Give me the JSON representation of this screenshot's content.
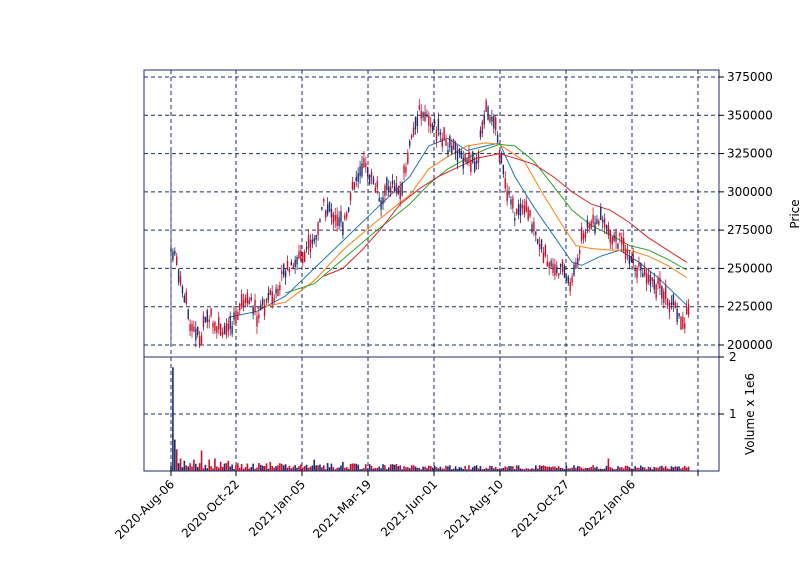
{
  "chart_data": {
    "type": "candlestick",
    "title": "",
    "x_ticks": [
      "2020-Aug-06",
      "2020-Oct-22",
      "2021-Jan-05",
      "2021-Mar-19",
      "2021-Jun-01",
      "2021-Aug-10",
      "2021-Oct-27",
      "2022-Jan-06"
    ],
    "price_panel": {
      "ylabel": "Price",
      "ylim": [
        197000,
        381000
      ],
      "y_ticks": [
        200000,
        225000,
        250000,
        275000,
        300000,
        325000,
        350000,
        375000
      ],
      "y_tick_labels": [
        "200000",
        "225000",
        "250000",
        "275000",
        "300000",
        "325000",
        "350000",
        "375000"
      ],
      "close_path": [
        [
          1,
          262000
        ],
        [
          5,
          245000
        ],
        [
          10,
          215000
        ],
        [
          15,
          205000
        ],
        [
          20,
          220000
        ],
        [
          25,
          212000
        ],
        [
          30,
          208000
        ],
        [
          35,
          222000
        ],
        [
          40,
          235000
        ],
        [
          45,
          218000
        ],
        [
          50,
          228000
        ],
        [
          55,
          235000
        ],
        [
          60,
          250000
        ],
        [
          65,
          255000
        ],
        [
          70,
          262000
        ],
        [
          75,
          270000
        ],
        [
          80,
          290000
        ],
        [
          85,
          285000
        ],
        [
          90,
          280000
        ],
        [
          95,
          300000
        ],
        [
          100,
          318000
        ],
        [
          105,
          310000
        ],
        [
          110,
          295000
        ],
        [
          115,
          305000
        ],
        [
          120,
          300000
        ],
        [
          125,
          330000
        ],
        [
          130,
          355000
        ],
        [
          135,
          345000
        ],
        [
          140,
          340000
        ],
        [
          145,
          330000
        ],
        [
          150,
          325000
        ],
        [
          155,
          322000
        ],
        [
          160,
          318000
        ],
        [
          165,
          358000
        ],
        [
          170,
          340000
        ],
        [
          175,
          305000
        ],
        [
          180,
          285000
        ],
        [
          185,
          290000
        ],
        [
          190,
          278000
        ],
        [
          195,
          260000
        ],
        [
          200,
          252000
        ],
        [
          205,
          248000
        ],
        [
          210,
          240000
        ],
        [
          215,
          270000
        ],
        [
          220,
          278000
        ],
        [
          225,
          282000
        ],
        [
          230,
          272000
        ],
        [
          235,
          268000
        ],
        [
          240,
          255000
        ],
        [
          245,
          250000
        ],
        [
          250,
          245000
        ],
        [
          255,
          238000
        ],
        [
          260,
          230000
        ],
        [
          265,
          222000
        ],
        [
          268,
          212000
        ],
        [
          271,
          222000
        ]
      ],
      "ma_series": [
        {
          "color": "#1f77b4",
          "points": [
            [
              30,
              218000
            ],
            [
              45,
              222000
            ],
            [
              60,
              232000
            ],
            [
              75,
              250000
            ],
            [
              90,
              268000
            ],
            [
              105,
              286000
            ],
            [
              115,
              298000
            ],
            [
              125,
              310000
            ],
            [
              135,
              330000
            ],
            [
              145,
              335000
            ],
            [
              155,
              327000
            ],
            [
              165,
              330000
            ],
            [
              172,
              332000
            ],
            [
              180,
              310000
            ],
            [
              190,
              290000
            ],
            [
              200,
              272000
            ],
            [
              210,
              254000
            ],
            [
              215,
              252000
            ],
            [
              225,
              258000
            ],
            [
              235,
              262000
            ],
            [
              245,
              254000
            ],
            [
              255,
              244000
            ],
            [
              265,
              232000
            ],
            [
              270,
              226000
            ]
          ]
        },
        {
          "color": "#ff7f0e",
          "points": [
            [
              45,
              224000
            ],
            [
              60,
              228000
            ],
            [
              75,
              242000
            ],
            [
              90,
              262000
            ],
            [
              105,
              278000
            ],
            [
              115,
              288000
            ],
            [
              125,
              298000
            ],
            [
              135,
              315000
            ],
            [
              145,
              323000
            ],
            [
              155,
              330000
            ],
            [
              165,
              332000
            ],
            [
              172,
              331000
            ],
            [
              185,
              320000
            ],
            [
              195,
              298000
            ],
            [
              205,
              278000
            ],
            [
              212,
              265000
            ],
            [
              220,
              263000
            ],
            [
              230,
              262000
            ],
            [
              240,
              262000
            ],
            [
              250,
              258000
            ],
            [
              260,
              252000
            ],
            [
              270,
              244000
            ]
          ]
        },
        {
          "color": "#2ca02c",
          "points": [
            [
              60,
              234000
            ],
            [
              75,
              240000
            ],
            [
              90,
              256000
            ],
            [
              105,
              272000
            ],
            [
              115,
              282000
            ],
            [
              125,
              292000
            ],
            [
              135,
              305000
            ],
            [
              145,
              315000
            ],
            [
              155,
              322000
            ],
            [
              165,
              328000
            ],
            [
              172,
              331000
            ],
            [
              180,
              330000
            ],
            [
              190,
              320000
            ],
            [
              200,
              304000
            ],
            [
              210,
              288000
            ],
            [
              220,
              278000
            ],
            [
              230,
              272000
            ],
            [
              240,
              265000
            ],
            [
              250,
              262000
            ],
            [
              260,
              256000
            ],
            [
              270,
              249000
            ]
          ]
        },
        {
          "color": "#d62728",
          "points": [
            [
              80,
              245000
            ],
            [
              90,
              250000
            ],
            [
              100,
              262000
            ],
            [
              110,
              276000
            ],
            [
              120,
              292000
            ],
            [
              130,
              302000
            ],
            [
              140,
              310000
            ],
            [
              150,
              316000
            ],
            [
              160,
              322000
            ],
            [
              172,
              325000
            ],
            [
              180,
              322000
            ],
            [
              190,
              318000
            ],
            [
              200,
              310000
            ],
            [
              210,
              300000
            ],
            [
              220,
              292000
            ],
            [
              230,
              288000
            ],
            [
              240,
              280000
            ],
            [
              250,
              270000
            ],
            [
              260,
              262000
            ],
            [
              270,
              254000
            ]
          ]
        }
      ]
    },
    "volume_panel": {
      "ylabel": "Volume x 1e6",
      "ylim": [
        0,
        2.0
      ],
      "y_ticks": [
        1,
        2
      ],
      "y_tick_labels": [
        "1",
        "2"
      ],
      "spikes": [
        [
          1,
          1.82
        ],
        [
          2,
          0.55
        ],
        [
          3,
          0.38
        ],
        [
          5,
          0.22
        ],
        [
          7,
          0.18
        ],
        [
          12,
          0.2
        ],
        [
          16,
          0.36
        ],
        [
          20,
          0.2
        ],
        [
          23,
          0.22
        ],
        [
          26,
          0.16
        ],
        [
          30,
          0.18
        ],
        [
          46,
          0.14
        ],
        [
          52,
          0.16
        ],
        [
          60,
          0.12
        ],
        [
          75,
          0.2
        ],
        [
          82,
          0.14
        ],
        [
          90,
          0.16
        ],
        [
          96,
          0.13
        ],
        [
          104,
          0.12
        ],
        [
          120,
          0.1
        ],
        [
          138,
          0.09
        ],
        [
          160,
          0.1
        ],
        [
          175,
          0.08
        ],
        [
          200,
          0.08
        ],
        [
          220,
          0.07
        ],
        [
          229,
          0.22
        ],
        [
          255,
          0.06
        ],
        [
          270,
          0.06
        ]
      ]
    },
    "colors": {
      "up": "#1f2d6b",
      "down": "#c8102e",
      "grid": "#1f2d6b"
    }
  }
}
